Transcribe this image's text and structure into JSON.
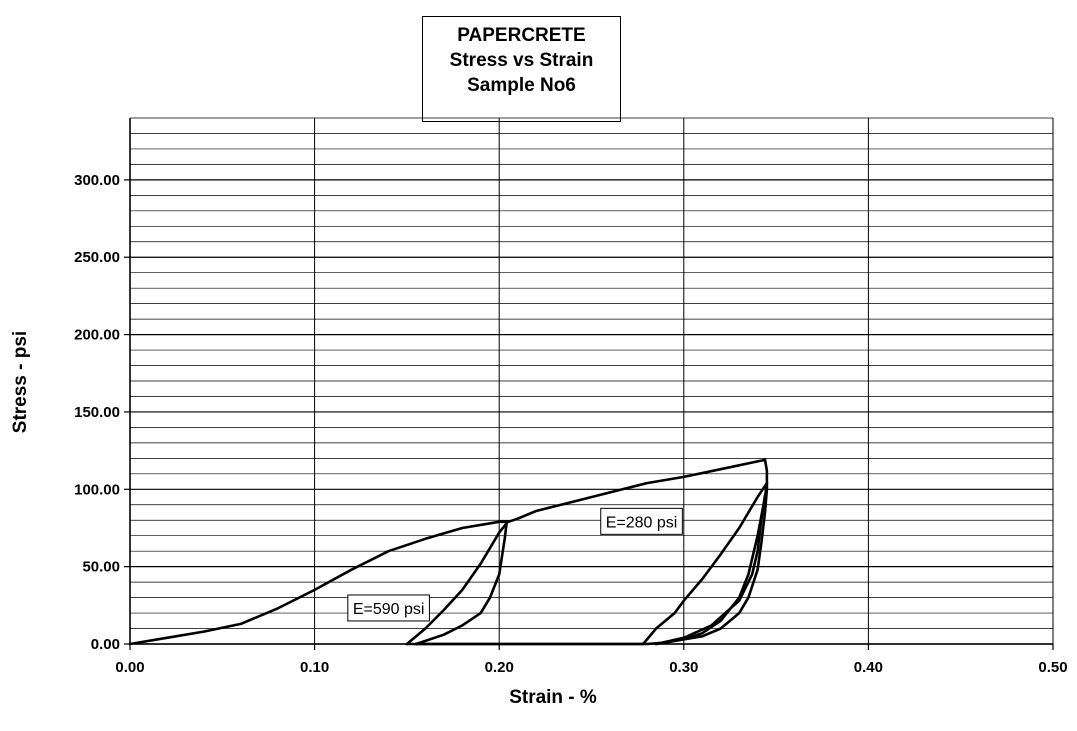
{
  "chart_data": {
    "type": "scatter",
    "title_lines": [
      "PAPERCRETE",
      "Stress vs Strain",
      "Sample No6"
    ],
    "xlabel": "Strain - %",
    "ylabel": "Stress - psi",
    "xlim": [
      0,
      0.5
    ],
    "ylim": [
      0,
      340
    ],
    "x_ticks": [
      "0.00",
      "0.10",
      "0.20",
      "0.30",
      "0.40",
      "0.50"
    ],
    "x_tick_values": [
      0,
      0.1,
      0.2,
      0.3,
      0.4,
      0.5
    ],
    "y_ticks": [
      "0.00",
      "50.00",
      "100.00",
      "150.00",
      "200.00",
      "250.00",
      "300.00"
    ],
    "y_tick_values": [
      0,
      50,
      100,
      150,
      200,
      250,
      300
    ],
    "minor_y_step": 10,
    "grid": true,
    "legend": "none",
    "line_color": "#000000",
    "series": [
      {
        "x": [
          0.0,
          0.02,
          0.04,
          0.06,
          0.08,
          0.1,
          0.12,
          0.14,
          0.16,
          0.18,
          0.2,
          0.202,
          0.205,
          0.21,
          0.22,
          0.24,
          0.26,
          0.28,
          0.3,
          0.32,
          0.34,
          0.344
        ],
        "y": [
          0,
          4,
          8,
          13,
          23,
          35,
          48,
          60,
          68,
          75,
          79,
          79,
          79,
          81,
          86,
          92,
          98,
          104,
          108,
          113,
          118,
          119
        ]
      },
      {
        "x": [
          0.344,
          0.345,
          0.345,
          0.344,
          0.342,
          0.34,
          0.335,
          0.33,
          0.32,
          0.31,
          0.3,
          0.29,
          0.28,
          0.27,
          0.25,
          0.23,
          0.21,
          0.19,
          0.17,
          0.16,
          0.155,
          0.15
        ],
        "y": [
          119,
          112,
          100,
          85,
          65,
          48,
          30,
          20,
          10,
          5,
          3,
          1,
          0,
          0,
          0,
          0,
          0,
          0,
          0,
          0,
          0,
          0
        ]
      },
      {
        "x": [
          0.15,
          0.16,
          0.17,
          0.18,
          0.19,
          0.195,
          0.2,
          0.204
        ],
        "y": [
          0,
          10,
          22,
          35,
          52,
          62,
          72,
          78
        ]
      },
      {
        "x": [
          0.204,
          0.203,
          0.2,
          0.195,
          0.19,
          0.18,
          0.17,
          0.16,
          0.155
        ],
        "y": [
          78,
          68,
          45,
          30,
          20,
          12,
          6,
          2,
          0
        ]
      },
      {
        "x": [
          0.155,
          0.17,
          0.19,
          0.22,
          0.25,
          0.278
        ],
        "y": [
          0,
          0,
          0,
          0,
          0,
          0
        ]
      },
      {
        "x": [
          0.278,
          0.285,
          0.295,
          0.3,
          0.31,
          0.32,
          0.33,
          0.34,
          0.345
        ],
        "y": [
          0,
          10,
          20,
          28,
          42,
          58,
          75,
          95,
          104
        ]
      },
      {
        "x": [
          0.345,
          0.344,
          0.34,
          0.335,
          0.33,
          0.32,
          0.31,
          0.3,
          0.29,
          0.285
        ],
        "y": [
          104,
          95,
          70,
          45,
          30,
          15,
          7,
          3,
          1,
          0
        ]
      },
      {
        "x": [
          0.285,
          0.3,
          0.315,
          0.33,
          0.337,
          0.34,
          0.342,
          0.344
        ],
        "y": [
          0,
          4,
          12,
          28,
          45,
          60,
          80,
          96
        ]
      }
    ],
    "annotations": [
      {
        "text": "E=590 psi",
        "x": 0.118,
        "y": 22
      },
      {
        "text": "E=280 psi",
        "x": 0.255,
        "y": 78
      }
    ]
  }
}
